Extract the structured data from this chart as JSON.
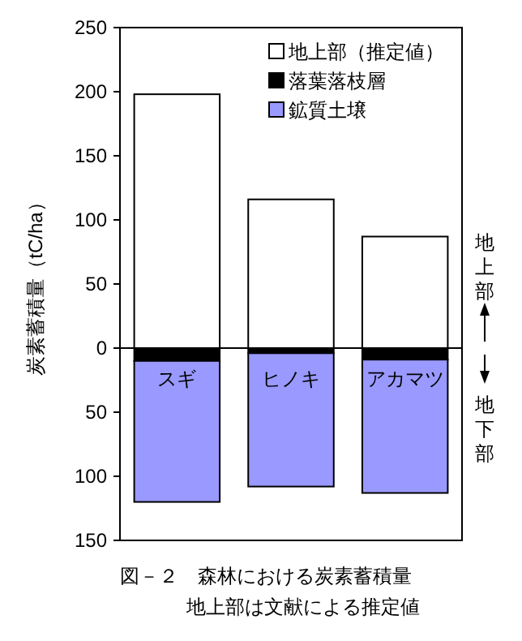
{
  "chart_data": {
    "type": "bar",
    "stacked": true,
    "title": "図－２　森林における炭素蓄積量",
    "subtitle": "地上部は文献による推定値",
    "ylabel": "炭素蓄積量（tC/ha）",
    "categories": [
      "スギ",
      "ヒノキ",
      "アカマツ"
    ],
    "series": [
      {
        "name": "地上部（推定値）",
        "color": "#ffffff",
        "values": [
          198,
          116,
          87
        ]
      },
      {
        "name": "落葉落枝層",
        "color": "#000000",
        "values": [
          -10,
          -4,
          -9
        ]
      },
      {
        "name": "鉱質土壌",
        "color": "#9999ff",
        "values": [
          -110,
          -104,
          -104
        ]
      }
    ],
    "ylim": [
      -150,
      250
    ],
    "yticks": [
      {
        "value": -150,
        "label": "150"
      },
      {
        "value": -100,
        "label": "100"
      },
      {
        "value": -50,
        "label": "50"
      },
      0,
      50,
      100,
      150,
      200,
      250
    ],
    "annotations": [
      "地上部",
      "地下部"
    ],
    "legend": "top right"
  }
}
